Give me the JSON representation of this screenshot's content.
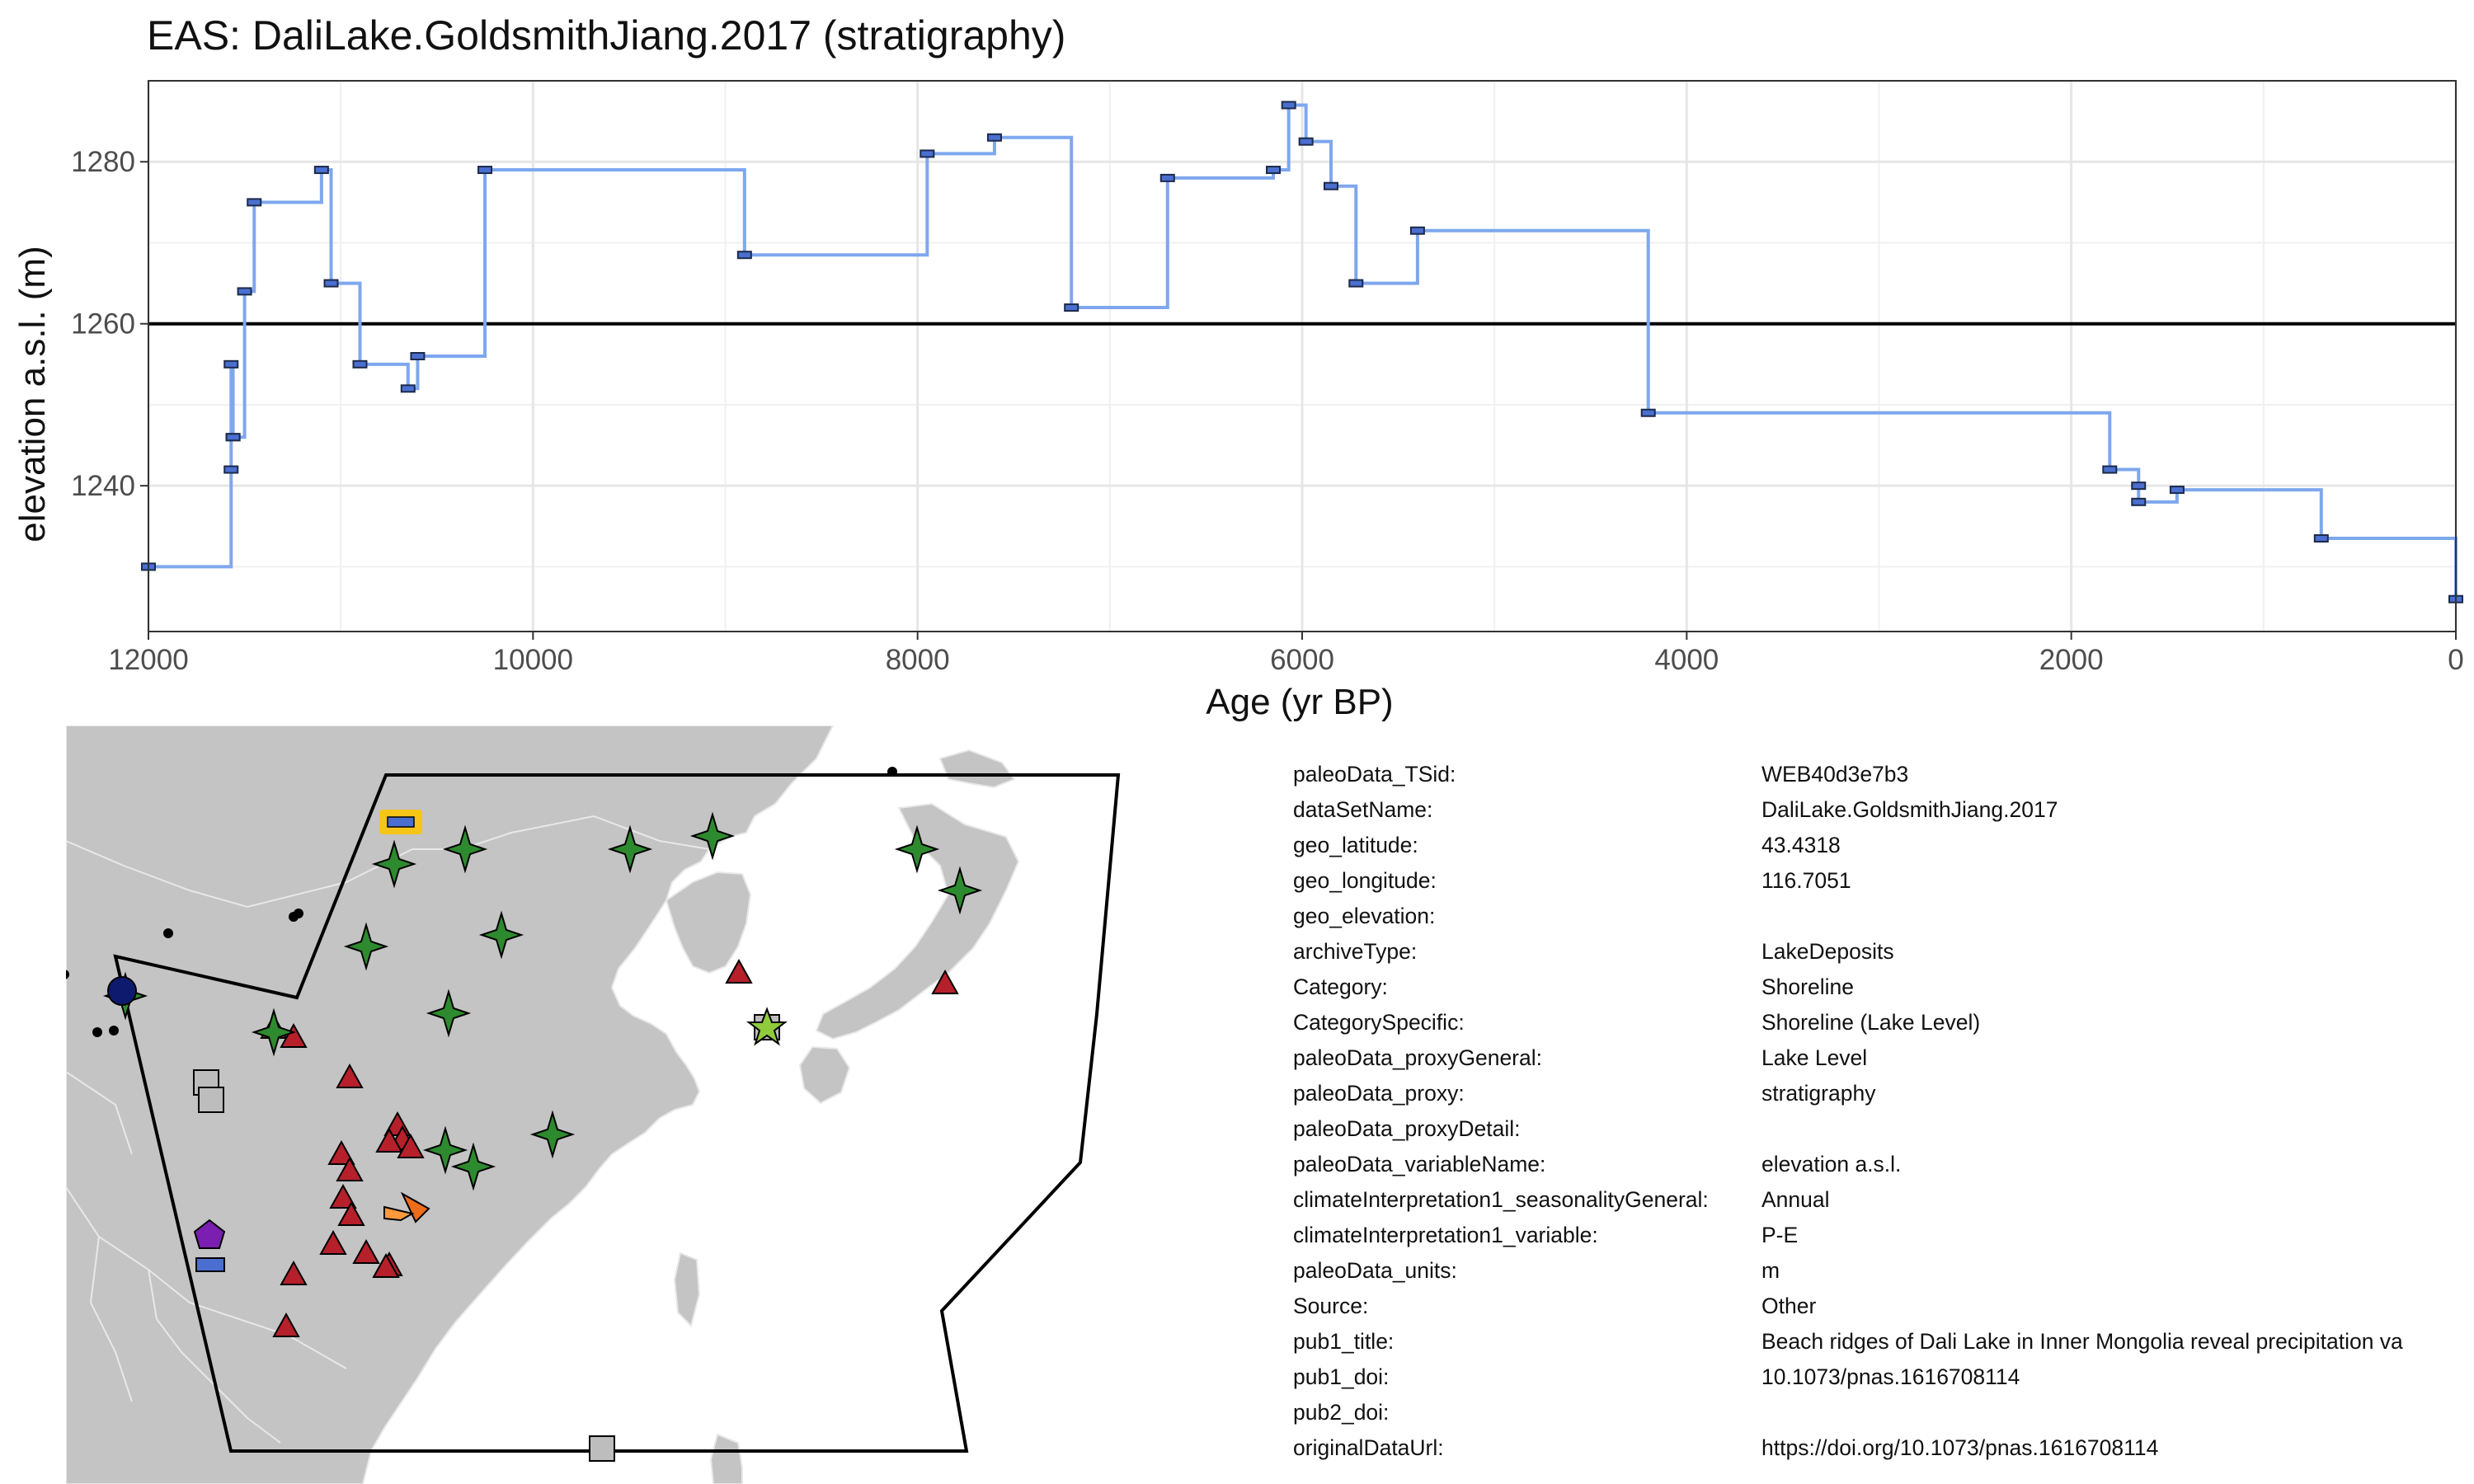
{
  "chart_data": {
    "type": "line",
    "title": "EAS: DaliLake.GoldsmithJiang.2017 (stratigraphy)",
    "xlabel": "Age (yr BP)",
    "ylabel": "elevation a.s.l. (m)",
    "xlim": [
      12000,
      0
    ],
    "ylim": [
      1222,
      1290
    ],
    "x_reversed": true,
    "x_ticks": [
      12000,
      10000,
      8000,
      6000,
      4000,
      2000,
      0
    ],
    "y_ticks": [
      1240,
      1260,
      1280
    ],
    "grid": true,
    "reference_line_y": 1260,
    "line_style": "step",
    "colors": {
      "line": "#7ea7ee",
      "marker_fill": "#4a6fd0",
      "reference": "#000000",
      "grid": "#e6e6e6"
    },
    "series": [
      {
        "x": [
          12000,
          11570,
          11570,
          11560,
          11560,
          11500,
          11450,
          11100,
          11050,
          10900,
          10650,
          10600,
          10250,
          8900,
          7950,
          7600,
          7200,
          6700,
          6150,
          6070,
          5980,
          5850,
          5720,
          5400,
          4200,
          1800,
          1650,
          1650,
          1450,
          700,
          0
        ],
        "y": [
          1230,
          1242,
          1255,
          1246,
          1246,
          1264,
          1275,
          1279,
          1265,
          1255,
          1252,
          1256,
          1279,
          1268.5,
          1281,
          1283,
          1262,
          1278,
          1279,
          1287,
          1282.5,
          1277,
          1265,
          1271.5,
          1249,
          1242,
          1240,
          1238,
          1239.5,
          1233.5,
          1226
        ]
      }
    ]
  },
  "map": {
    "colors": {
      "land": "#c4c4c4",
      "ocean": "#ffffff",
      "region_outline": "#000000",
      "triangle": "#b5202a",
      "star4": "#2e8a2e",
      "square": "#bdbdbd",
      "highlight_outline": "#f5c518",
      "highlight_fill": "#4a6fd0"
    },
    "symbols": [
      "triangle",
      "four-point-star",
      "square",
      "pentagon",
      "circle",
      "five-point-star",
      "rectangle"
    ]
  },
  "metadata": [
    {
      "key": "paleoData_TSid:",
      "value": "WEB40d3e7b3"
    },
    {
      "key": "dataSetName:",
      "value": "DaliLake.GoldsmithJiang.2017"
    },
    {
      "key": "geo_latitude:",
      "value": "43.4318"
    },
    {
      "key": "geo_longitude:",
      "value": "116.7051"
    },
    {
      "key": "geo_elevation:",
      "value": ""
    },
    {
      "key": "archiveType:",
      "value": "LakeDeposits"
    },
    {
      "key": "Category:",
      "value": "Shoreline"
    },
    {
      "key": "CategorySpecific:",
      "value": "Shoreline (Lake Level)"
    },
    {
      "key": "paleoData_proxyGeneral:",
      "value": "Lake Level"
    },
    {
      "key": "paleoData_proxy:",
      "value": "stratigraphy"
    },
    {
      "key": "paleoData_proxyDetail:",
      "value": ""
    },
    {
      "key": "paleoData_variableName:",
      "value": "elevation a.s.l."
    },
    {
      "key": "climateInterpretation1_seasonalityGeneral:",
      "value": "Annual"
    },
    {
      "key": "climateInterpretation1_variable:",
      "value": "P-E"
    },
    {
      "key": "paleoData_units:",
      "value": "m"
    },
    {
      "key": "Source:",
      "value": "Other"
    },
    {
      "key": "pub1_title:",
      "value": "Beach ridges of Dali Lake in Inner Mongolia reveal precipitation va"
    },
    {
      "key": "pub1_doi:",
      "value": "10.1073/pnas.1616708114"
    },
    {
      "key": "pub2_doi:",
      "value": ""
    },
    {
      "key": "originalDataUrl:",
      "value": "https://doi.org/10.1073/pnas.1616708114"
    }
  ]
}
